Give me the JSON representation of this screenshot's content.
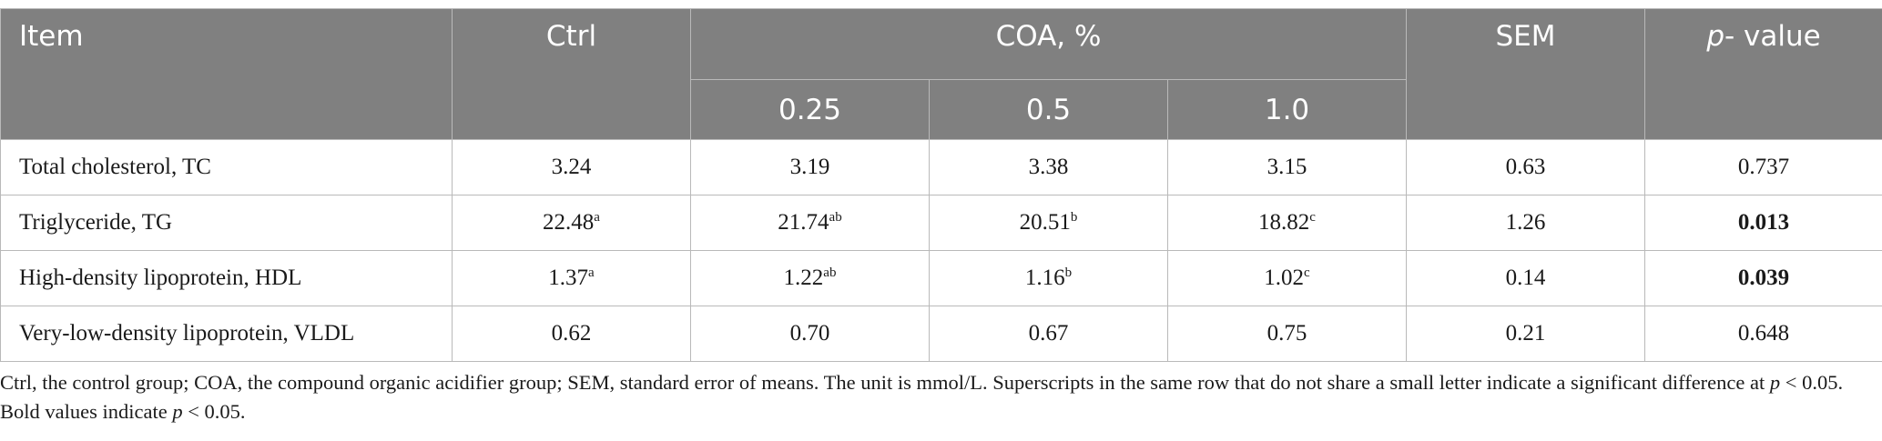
{
  "header": {
    "item": "Item",
    "ctrl": "Ctrl",
    "coa": "COA, %",
    "coa_levels": [
      "0.25",
      "0.5",
      "1.0"
    ],
    "sem": "SEM",
    "pvalue_italic": "p",
    "pvalue_rest": "- value"
  },
  "rows": [
    {
      "label": "Total cholesterol, TC",
      "ctrl": "3.24",
      "ctrl_sup": "",
      "coa025": "3.19",
      "coa025_sup": "",
      "coa05": "3.38",
      "coa05_sup": "",
      "coa10": "3.15",
      "coa10_sup": "",
      "sem": "0.63",
      "p": "0.737",
      "p_bold": false
    },
    {
      "label": "Triglyceride, TG",
      "ctrl": "22.48",
      "ctrl_sup": "a",
      "coa025": "21.74",
      "coa025_sup": "ab",
      "coa05": "20.51",
      "coa05_sup": "b",
      "coa10": "18.82",
      "coa10_sup": "c",
      "sem": "1.26",
      "p": "0.013",
      "p_bold": true
    },
    {
      "label": "High-density lipoprotein, HDL",
      "ctrl": "1.37",
      "ctrl_sup": "a",
      "coa025": "1.22",
      "coa025_sup": "ab",
      "coa05": "1.16",
      "coa05_sup": "b",
      "coa10": "1.02",
      "coa10_sup": "c",
      "sem": "0.14",
      "p": "0.039",
      "p_bold": true
    },
    {
      "label": "Very-low-density lipoprotein, VLDL",
      "ctrl": "0.62",
      "ctrl_sup": "",
      "coa025": "0.70",
      "coa025_sup": "",
      "coa05": "0.67",
      "coa05_sup": "",
      "coa10": "0.75",
      "coa10_sup": "",
      "sem": "0.21",
      "p": "0.648",
      "p_bold": false
    }
  ],
  "footnote": {
    "part1": "Ctrl, the control group; COA, the compound organic acidifier group; SEM, standard error of means. The unit is mmol/L. Superscripts in the same row that do not share a small letter indicate a significant difference at ",
    "p1": "p",
    "part2": " < 0.05. Bold values indicate ",
    "p2": "p",
    "part3": " < 0.05."
  },
  "colors": {
    "header_bg": "#808080",
    "header_text": "#ffffff",
    "grid_line": "#b9b9b9",
    "body_text": "#1a1a1a"
  }
}
